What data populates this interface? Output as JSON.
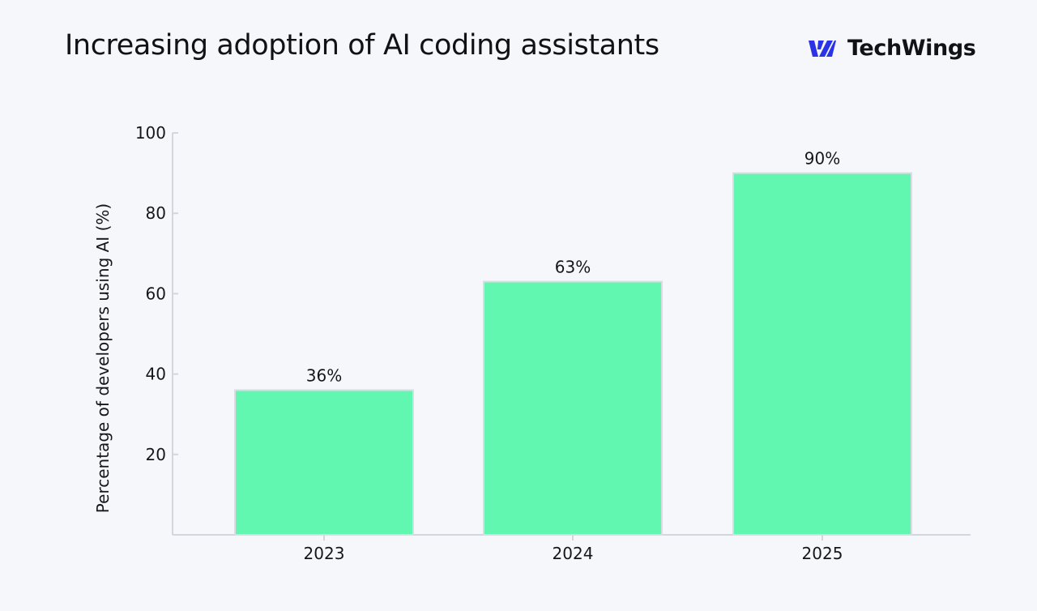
{
  "header": {
    "title": "Increasing adoption of AI coding assistants",
    "brand_name": "TechWings",
    "brand_icon": "techwings-logo-icon"
  },
  "colors": {
    "background": "#f5f7fb",
    "bar_fill": "#62f7b0",
    "bar_stroke": "#d9dde3",
    "axis": "#d3d6dc",
    "text": "#15171b",
    "brand_accent": "#2b33e6"
  },
  "chart_data": {
    "type": "bar",
    "title": "Increasing adoption of AI coding assistants",
    "xlabel": "",
    "ylabel": "Percentage of developers using AI (%)",
    "categories": [
      "2023",
      "2024",
      "2025"
    ],
    "values": [
      36,
      63,
      90
    ],
    "data_labels": [
      "36%",
      "63%",
      "90%"
    ],
    "yticks": [
      20,
      40,
      60,
      80,
      100
    ],
    "ylim": [
      0,
      100
    ],
    "grid": false,
    "legend": "none"
  }
}
